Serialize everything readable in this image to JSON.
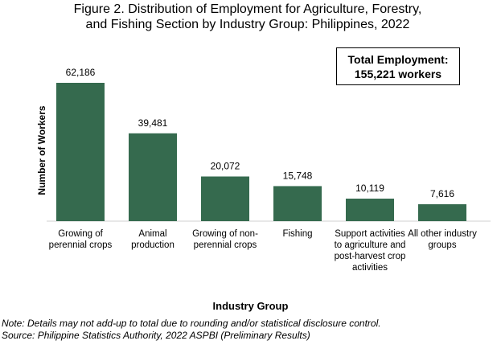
{
  "chart_data": {
    "type": "bar",
    "title": "Figure 2. Distribution of Employment for Agriculture, Forestry, and Fishing Section by Industry Group: Philippines, 2022",
    "annotation": "Total Employment: 155,221 workers",
    "y_label": "Number of Workers",
    "x_label": "Industry Group",
    "categories": [
      "Growing of perennial crops",
      "Animal production",
      "Growing of non-perennial crops",
      "Fishing",
      "Support activities to agriculture and post-harvest crop activities",
      "All other industry groups"
    ],
    "values": [
      62186,
      39481,
      20072,
      15748,
      10119,
      7616
    ],
    "value_labels": [
      "62,186",
      "39,481",
      "20,072",
      "15,748",
      "10,119",
      "7,616"
    ],
    "color": "#356a4e",
    "notes": [
      "Note: Details may not add-up to total due to rounding and/or statistical disclosure control.",
      "Source: Philippine Statistics Authority, 2022 ASPBI (Preliminary Results)"
    ]
  }
}
